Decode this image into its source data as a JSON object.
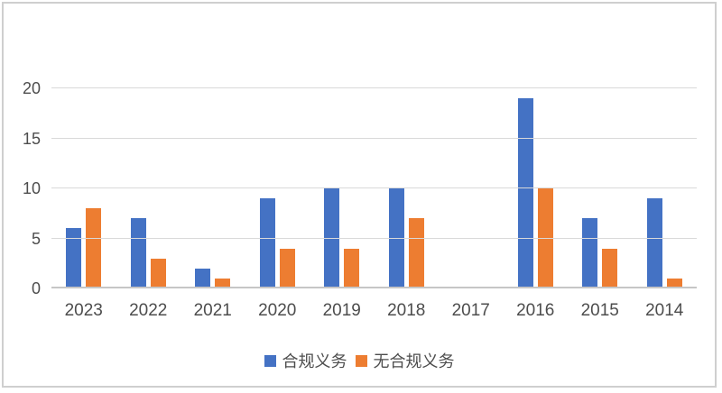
{
  "chart_data": {
    "type": "bar",
    "title": "",
    "xlabel": "",
    "ylabel": "",
    "categories": [
      "2023",
      "2022",
      "2021",
      "2020",
      "2019",
      "2018",
      "2017",
      "2016",
      "2015",
      "2014"
    ],
    "series": [
      {
        "name": "合规义务",
        "color": "#4472C4",
        "values": [
          6,
          7,
          2,
          9,
          10,
          10,
          0,
          19,
          7,
          9
        ]
      },
      {
        "name": "无合规义务",
        "color": "#ED7D31",
        "values": [
          8,
          3,
          1,
          4,
          4,
          7,
          0,
          10,
          4,
          1
        ]
      }
    ],
    "ylim": [
      0,
      20
    ],
    "yticks": [
      0,
      5,
      10,
      15,
      20
    ],
    "grid": true,
    "legend_position": "bottom"
  },
  "colors": {
    "frame_border": "#cfcfcf",
    "gridline": "#d9d9d9",
    "axis_text": "#4d4d4d",
    "background": "#ffffff"
  }
}
